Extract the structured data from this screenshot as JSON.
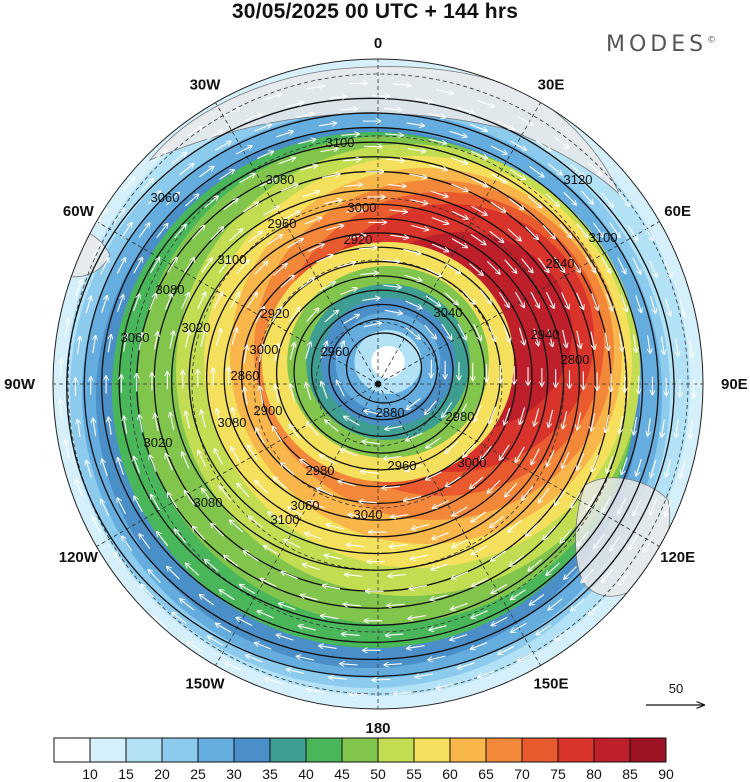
{
  "title": "30/05/2025  00 UTC  + 144 hrs",
  "brand": "MODES",
  "brand_mark": "©",
  "longitude_labels": [
    {
      "text": "0",
      "lon": 0
    },
    {
      "text": "30E",
      "lon": 30
    },
    {
      "text": "60E",
      "lon": 60
    },
    {
      "text": "90E",
      "lon": 90
    },
    {
      "text": "120E",
      "lon": 120
    },
    {
      "text": "150E",
      "lon": 150
    },
    {
      "text": "180",
      "lon": 180
    },
    {
      "text": "150W",
      "lon": 210
    },
    {
      "text": "120W",
      "lon": 240
    },
    {
      "text": "90W",
      "lon": 270
    },
    {
      "text": "60W",
      "lon": 300
    },
    {
      "text": "30W",
      "lon": 330
    }
  ],
  "contour_labels": [
    "3100",
    "3080",
    "3120",
    "3060",
    "3100",
    "2960",
    "3000",
    "2920",
    "3100",
    "2840",
    "3080",
    "3020",
    "3060",
    "2920",
    "2960",
    "3040",
    "3000",
    "2940",
    "2800",
    "2860",
    "2900",
    "2880",
    "2980",
    "3080",
    "3020",
    "3000",
    "2980",
    "2960",
    "3060",
    "3040",
    "3080",
    "3100"
  ],
  "reference_vector": {
    "label": "50",
    "icon": "arrow-right-icon"
  },
  "colorbar": {
    "ticks": [
      "10",
      "15",
      "20",
      "25",
      "30",
      "35",
      "40",
      "45",
      "50",
      "55",
      "60",
      "65",
      "70",
      "75",
      "80",
      "85",
      "90"
    ],
    "colors": [
      "#ffffff",
      "#d6f0fb",
      "#b3e2f7",
      "#8ccbee",
      "#65addf",
      "#4a8fc8",
      "#3f9e92",
      "#49b659",
      "#82c54c",
      "#c3dd53",
      "#f4e05c",
      "#f9b64a",
      "#f4883a",
      "#e95a2e",
      "#d9342b",
      "#bd1f2b",
      "#9c1423"
    ]
  }
}
